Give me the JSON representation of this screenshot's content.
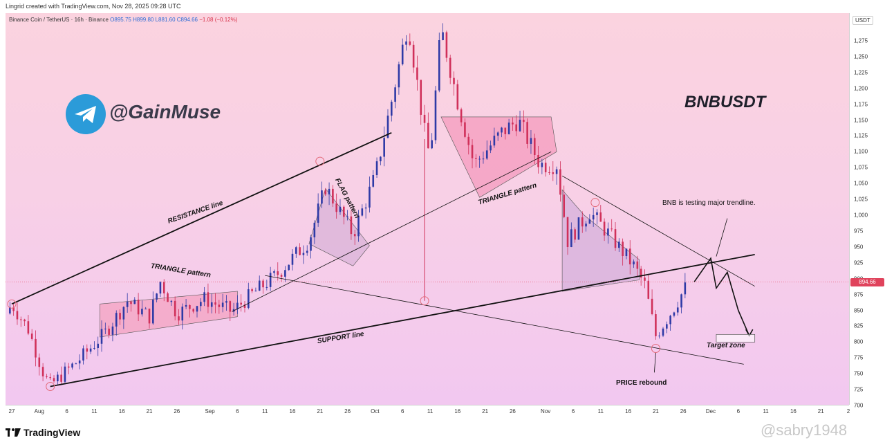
{
  "topbar": {
    "text": "Lingrid created with TradingView.com, Nov 28, 2025 09:28 UTC"
  },
  "legend": {
    "name": "Binance Coin / TetherUS · 16h · Binance",
    "o": "O895.75",
    "h": "H899.80",
    "l": "L881.60",
    "c": "C894.66",
    "chg": "−1.08 (−0.12%)"
  },
  "brand": {
    "handle": "@GainMuse",
    "symbol": "BNBUSDT",
    "watermark": "@sabry1948",
    "footer": "TradingView"
  },
  "annotations": {
    "resistance": "RESISTANCE line",
    "triangle1": "TRIANGLE pattern",
    "flag": "FLAG pattern",
    "triangle2": "TRIANGLE pattern",
    "support": "SUPPORT line",
    "testing": "BNB is testing major trendline.",
    "target": "Target zone",
    "rebound": "PRICE rebound"
  },
  "colors": {
    "up": "#2e3aa6",
    "down": "#d0305a",
    "accent": "#e0435c",
    "telegram": "#2b9bd9"
  },
  "chart_data": {
    "type": "candlestick",
    "currency": "USDT",
    "last_price": "894.66",
    "ylim": [
      690,
      1310
    ],
    "yticks": [
      700,
      725,
      750,
      775,
      800,
      825,
      850,
      875,
      900,
      925,
      950,
      975,
      1000,
      1025,
      1050,
      1075,
      1100,
      1125,
      1150,
      1175,
      1200,
      1225,
      1250,
      1275
    ],
    "xticks": [
      "27",
      "Aug",
      "6",
      "11",
      "16",
      "21",
      "26",
      "Sep",
      "6",
      "11",
      "16",
      "21",
      "26",
      "Oct",
      "6",
      "11",
      "16",
      "21",
      "26",
      "Nov",
      "6",
      "11",
      "16",
      "21",
      "26",
      "Dec",
      "6",
      "11",
      "16",
      "21",
      "2"
    ],
    "price_path": [
      [
        "Jul 26",
        845
      ],
      [
        "Jul 27",
        860
      ],
      [
        "Jul 30",
        820
      ],
      [
        "Aug 2",
        745
      ],
      [
        "Aug 3",
        732
      ],
      [
        "Aug 8",
        770
      ],
      [
        "Aug 13",
        815
      ],
      [
        "Aug 17",
        865
      ],
      [
        "Aug 21",
        840
      ],
      [
        "Aug 23",
        895
      ],
      [
        "Aug 26",
        845
      ],
      [
        "Aug 31",
        868
      ],
      [
        "Sep 5",
        848
      ],
      [
        "Sep 9",
        878
      ],
      [
        "Sep 13",
        905
      ],
      [
        "Sep 19",
        960
      ],
      [
        "Sep 22",
        1045
      ],
      [
        "Sep 27",
        970
      ],
      [
        "Oct 1",
        1060
      ],
      [
        "Oct 4",
        1180
      ],
      [
        "Oct 7",
        1305
      ],
      [
        "Oct 10",
        1130
      ],
      [
        "Oct 11",
        1090
      ],
      [
        "Oct 13",
        1295
      ],
      [
        "Oct 16",
        1180
      ],
      [
        "Oct 19",
        1080
      ],
      [
        "Oct 24",
        1130
      ],
      [
        "Oct 27",
        1150
      ],
      [
        "Oct 31",
        1080
      ],
      [
        "Nov 3",
        1080
      ],
      [
        "Nov 5",
        960
      ],
      [
        "Nov 9",
        1005
      ],
      [
        "Nov 13",
        965
      ],
      [
        "Nov 17",
        920
      ],
      [
        "Nov 19",
        890
      ],
      [
        "Nov 21",
        810
      ],
      [
        "Nov 24",
        850
      ],
      [
        "Nov 27",
        895
      ]
    ],
    "projection": [
      [
        "Nov 28",
        895
      ],
      [
        "Dec 1",
        932
      ],
      [
        "Dec 2",
        885
      ],
      [
        "Dec 4",
        910
      ],
      [
        "Dec 6",
        850
      ],
      [
        "Dec 8",
        810
      ]
    ],
    "target_zone": {
      "from": 800,
      "to": 812
    },
    "lines": {
      "resistance": [
        [
          "Jul 27",
          860
        ],
        [
          "Oct 4",
          1130
        ]
      ],
      "support": [
        [
          "Aug 3",
          730
        ],
        [
          "Dec 9",
          938
        ]
      ],
      "lower_channel": [
        [
          "Sep 11",
          905
        ],
        [
          "Dec 7",
          765
        ]
      ],
      "mid_trend": [
        [
          "Sep 5",
          848
        ],
        [
          "Nov 2",
          1100
        ]
      ],
      "major_trend": [
        [
          "Nov 4",
          1062
        ],
        [
          "Dec 9",
          888
        ]
      ]
    }
  }
}
